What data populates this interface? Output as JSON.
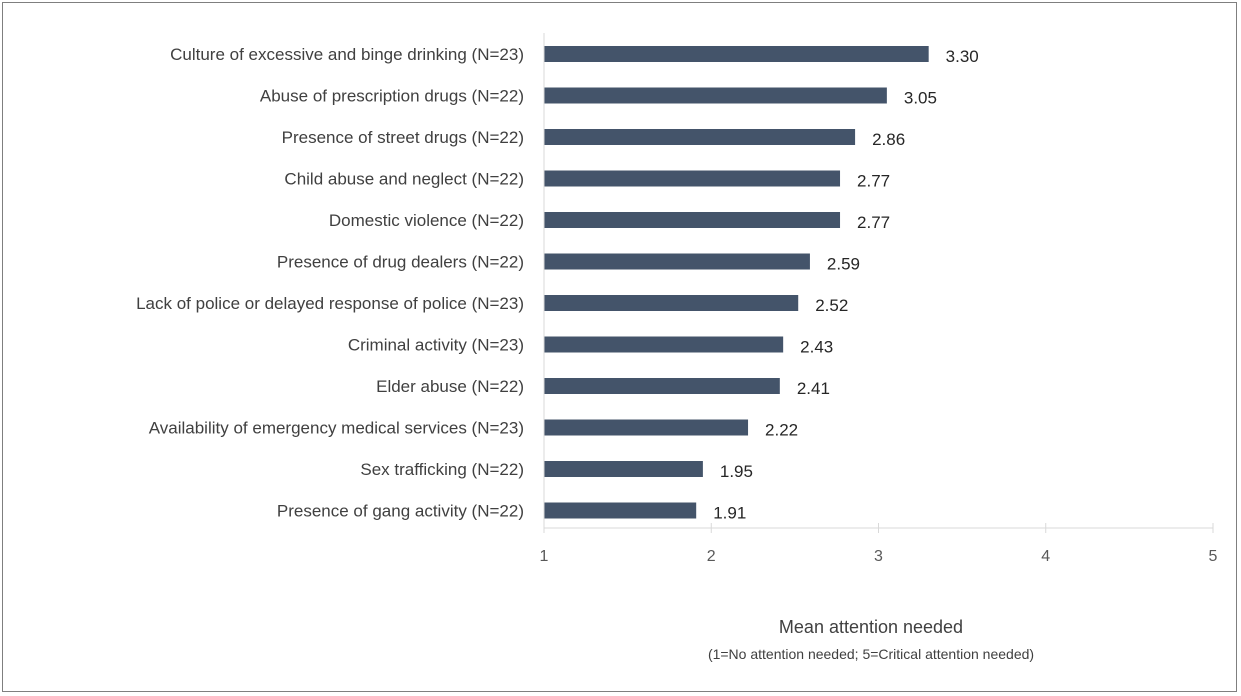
{
  "chart_data": {
    "type": "bar",
    "orientation": "horizontal",
    "categories": [
      "Culture of excessive and binge drinking (N=23)",
      "Abuse of prescription drugs (N=22)",
      "Presence of street drugs (N=22)",
      "Child abuse and neglect (N=22)",
      "Domestic violence (N=22)",
      "Presence of drug dealers (N=22)",
      "Lack of police or delayed response of police (N=23)",
      "Criminal activity (N=23)",
      "Elder abuse (N=22)",
      "Availability of emergency medical services (N=23)",
      "Sex trafficking (N=22)",
      "Presence of gang activity (N=22)"
    ],
    "values": [
      3.3,
      3.05,
      2.86,
      2.77,
      2.77,
      2.59,
      2.52,
      2.43,
      2.41,
      2.22,
      1.95,
      1.91
    ],
    "value_labels": [
      "3.30",
      "3.05",
      "2.86",
      "2.77",
      "2.77",
      "2.59",
      "2.52",
      "2.43",
      "2.41",
      "2.22",
      "1.95",
      "1.91"
    ],
    "xlim": [
      1,
      5
    ],
    "xticks": [
      "1",
      "2",
      "3",
      "4",
      "5"
    ],
    "xlabel": "Mean attention needed",
    "xlabel_sub": "(1=No attention needed; 5=Critical attention needed)",
    "bar_color": "#44546a",
    "grid": false,
    "legend": "none"
  }
}
